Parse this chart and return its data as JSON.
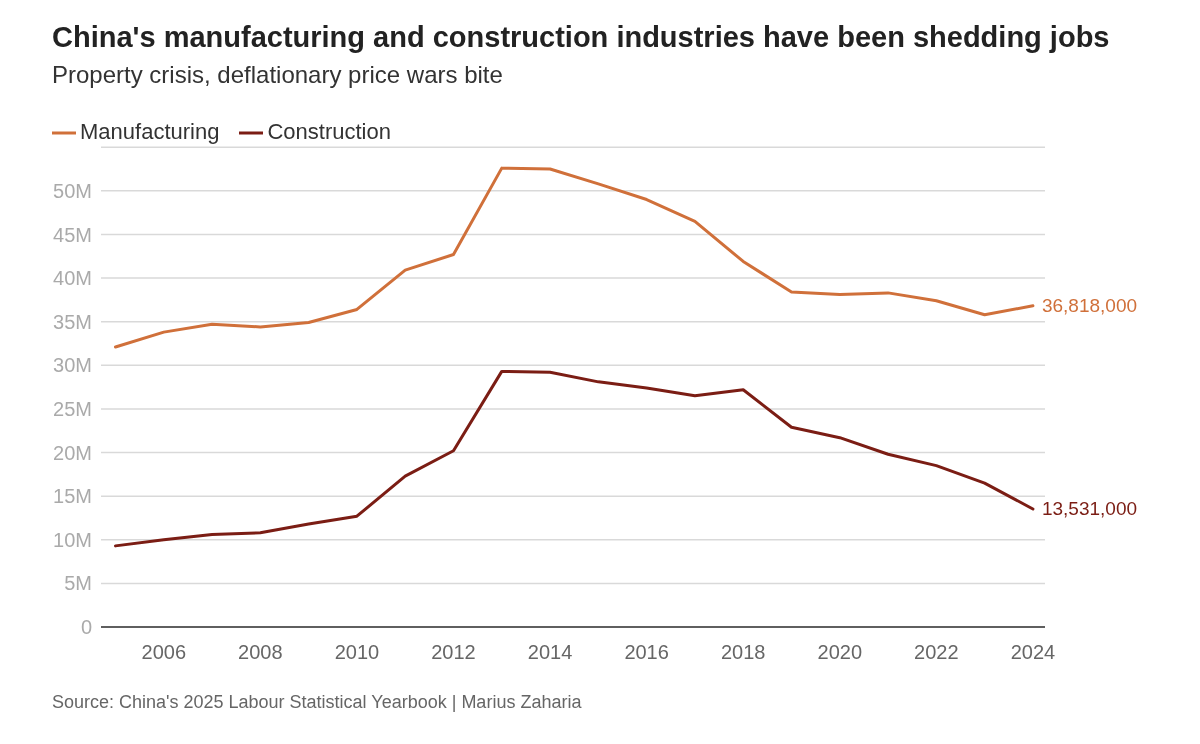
{
  "chart_data": {
    "type": "line",
    "title": "China's manufacturing and construction industries have been shedding jobs",
    "subtitle": "Property crisis, deflationary price wars bite",
    "annotations": [
      "Source: China's 2025 Labour Statistical Yearbook | Marius Zaharia"
    ],
    "x": [
      2005,
      2006,
      2007,
      2008,
      2009,
      2010,
      2011,
      2012,
      2013,
      2014,
      2015,
      2016,
      2017,
      2018,
      2019,
      2020,
      2021,
      2022,
      2023,
      2024
    ],
    "series": [
      {
        "name": "Manufacturing",
        "color": "#d0703a",
        "values": [
          32100000,
          33800000,
          34700000,
          34400000,
          34900000,
          36400000,
          40900000,
          42700000,
          52600000,
          52500000,
          50800000,
          49000000,
          46500000,
          41900000,
          38400000,
          38100000,
          38300000,
          37400000,
          35800000,
          36818000
        ],
        "value_labels": [
          null,
          null,
          null,
          null,
          null,
          null,
          null,
          null,
          null,
          null,
          null,
          null,
          null,
          null,
          null,
          null,
          null,
          null,
          null,
          "36,818,000"
        ]
      },
      {
        "name": "Construction",
        "color": "#7b1d14",
        "values": [
          9300000,
          10000000,
          10600000,
          10800000,
          11800000,
          12700000,
          17300000,
          20200000,
          29300000,
          29200000,
          28100000,
          27400000,
          26500000,
          27200000,
          22900000,
          21700000,
          19800000,
          18500000,
          16500000,
          13531000
        ],
        "value_labels": [
          null,
          null,
          null,
          null,
          null,
          null,
          null,
          null,
          null,
          null,
          null,
          null,
          null,
          null,
          null,
          null,
          null,
          null,
          null,
          "13,531,000"
        ]
      }
    ],
    "xlim": [
      2004.7,
      2024.25
    ],
    "xticks": [
      2006,
      2008,
      2010,
      2012,
      2014,
      2016,
      2018,
      2020,
      2022,
      2024
    ],
    "ylim": [
      0,
      55000000
    ],
    "yticks": [
      0,
      {
        "value": 5000000,
        "label": "5M"
      },
      {
        "value": 10000000,
        "label": "10M"
      },
      {
        "value": 15000000,
        "label": "15M"
      },
      {
        "value": 20000000,
        "label": "20M"
      },
      {
        "value": 25000000,
        "label": "25M"
      },
      {
        "value": 30000000,
        "label": "30M"
      },
      {
        "value": 35000000,
        "label": "35M"
      },
      {
        "value": 40000000,
        "label": "40M"
      },
      {
        "value": 45000000,
        "label": "45M"
      },
      {
        "value": 50000000,
        "label": "50M"
      }
    ],
    "grid": "y",
    "legend": "top left"
  }
}
